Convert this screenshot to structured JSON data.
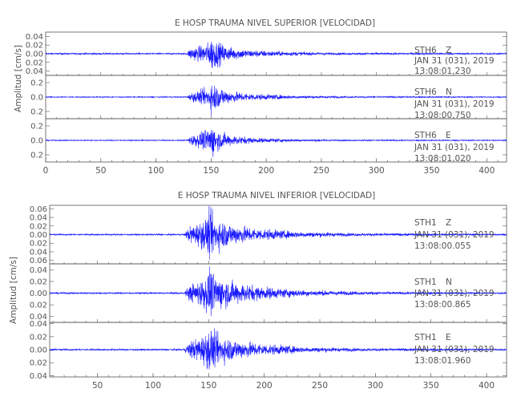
{
  "chart_data": [
    {
      "type": "line",
      "title": "E HOSP TRAUMA NIVEL SUPERIOR [VELOCIDAD]",
      "ylabel": "Amplitud [cm/s]",
      "xlabel": "",
      "xlim": [
        0,
        418
      ],
      "x_ticks": [
        0,
        50,
        100,
        150,
        200,
        250,
        300,
        350,
        400
      ],
      "x_tick_labels": [
        "0",
        "50",
        "100",
        "150",
        "200",
        "250",
        "300",
        "350",
        "400"
      ],
      "grid": false,
      "color": "#1a1aff",
      "series": [
        {
          "station": "STH6",
          "component": "Z",
          "date": "JAN 31 (031), 2019",
          "start_time": "13:08:01.230",
          "ylim": [
            -0.05,
            0.05
          ],
          "y_ticks": [
            -0.04,
            -0.02,
            0.0,
            0.02,
            0.04
          ],
          "y_tick_labels": [
            "0.04",
            "0.02",
            "0.00",
            "0.02",
            "0.04"
          ],
          "envelope": [
            [
              0,
              0.002
            ],
            [
              128,
              0.002
            ],
            [
              132,
              0.018
            ],
            [
              140,
              0.02
            ],
            [
              148,
              0.03
            ],
            [
              151,
              0.048
            ],
            [
              154,
              0.035
            ],
            [
              165,
              0.018
            ],
            [
              185,
              0.01
            ],
            [
              215,
              0.006
            ],
            [
              260,
              0.003
            ],
            [
              418,
              0.002
            ]
          ]
        },
        {
          "station": "STH6",
          "component": "N",
          "date": "JAN 31 (031), 2019",
          "start_time": "13:08:00.750",
          "ylim": [
            -0.3,
            0.3
          ],
          "y_ticks": [
            -0.2,
            0.0,
            0.2
          ],
          "y_tick_labels": [
            "0.2",
            "0.0",
            "0.2"
          ],
          "envelope": [
            [
              0,
              0.008
            ],
            [
              128,
              0.008
            ],
            [
              132,
              0.07
            ],
            [
              140,
              0.1
            ],
            [
              148,
              0.16
            ],
            [
              151,
              0.27
            ],
            [
              155,
              0.18
            ],
            [
              168,
              0.09
            ],
            [
              190,
              0.05
            ],
            [
              225,
              0.025
            ],
            [
              270,
              0.012
            ],
            [
              418,
              0.008
            ]
          ]
        },
        {
          "station": "STH6",
          "component": "E",
          "date": "JAN 31 (031), 2019",
          "start_time": "13:08:01.020",
          "ylim": [
            -0.3,
            0.3
          ],
          "y_ticks": [
            -0.2,
            0.0,
            0.2
          ],
          "y_tick_labels": [
            "0.2",
            "0.0",
            "0.2"
          ],
          "envelope": [
            [
              0,
              0.008
            ],
            [
              128,
              0.008
            ],
            [
              132,
              0.08
            ],
            [
              140,
              0.12
            ],
            [
              148,
              0.2
            ],
            [
              151,
              0.28
            ],
            [
              155,
              0.16
            ],
            [
              168,
              0.08
            ],
            [
              190,
              0.04
            ],
            [
              225,
              0.02
            ],
            [
              270,
              0.01
            ],
            [
              418,
              0.008
            ]
          ]
        }
      ]
    },
    {
      "type": "line",
      "title": "E HOSP TRAUMA NIVEL INFERIOR [VELOCIDAD]",
      "ylabel": "Amplitud [cm/s]",
      "xlabel": "",
      "xlim": [
        7,
        418
      ],
      "x_ticks": [
        50,
        100,
        150,
        200,
        250,
        300,
        350,
        400
      ],
      "x_tick_labels": [
        "50",
        "100",
        "150",
        "200",
        "250",
        "300",
        "350",
        "400"
      ],
      "grid": false,
      "color": "#1a1aff",
      "series": [
        {
          "station": "STH1",
          "component": "Z",
          "date": "JAN 31 (031), 2019",
          "start_time": "13:08:00.055",
          "ylim": [
            -0.068,
            0.068
          ],
          "y_ticks": [
            -0.06,
            -0.04,
            -0.02,
            0.0,
            0.02,
            0.04,
            0.06
          ],
          "y_tick_labels": [
            "0.06",
            "0.04",
            "0.02",
            "0.00",
            "0.02",
            "0.04",
            "0.06"
          ],
          "envelope": [
            [
              7,
              0.002
            ],
            [
              128,
              0.002
            ],
            [
              133,
              0.022
            ],
            [
              140,
              0.03
            ],
            [
              148,
              0.045
            ],
            [
              151,
              0.064
            ],
            [
              156,
              0.045
            ],
            [
              170,
              0.028
            ],
            [
              195,
              0.016
            ],
            [
              230,
              0.008
            ],
            [
              280,
              0.004
            ],
            [
              418,
              0.002
            ]
          ]
        },
        {
          "station": "STH1",
          "component": "N",
          "date": "JAN 31 (031), 2019",
          "start_time": "13:08:00.865",
          "ylim": [
            -0.05,
            0.05
          ],
          "y_ticks": [
            -0.04,
            -0.02,
            0.0,
            0.02,
            0.04
          ],
          "y_tick_labels": [
            "0.04",
            "0.02",
            "0.00",
            "0.02",
            "0.04"
          ],
          "envelope": [
            [
              7,
              0.0015
            ],
            [
              128,
              0.0015
            ],
            [
              133,
              0.016
            ],
            [
              140,
              0.022
            ],
            [
              148,
              0.035
            ],
            [
              151,
              0.048
            ],
            [
              156,
              0.034
            ],
            [
              172,
              0.022
            ],
            [
              200,
              0.012
            ],
            [
              235,
              0.006
            ],
            [
              290,
              0.003
            ],
            [
              418,
              0.0015
            ]
          ]
        },
        {
          "station": "STH1",
          "component": "E",
          "date": "JAN 31 (031), 2019",
          "start_time": "13:08:01.960",
          "ylim": [
            -0.042,
            0.042
          ],
          "y_ticks": [
            -0.04,
            -0.02,
            0.0,
            0.02,
            0.04
          ],
          "y_tick_labels": [
            "0.04",
            "0.02",
            "0.00",
            "0.02",
            "0.04"
          ],
          "envelope": [
            [
              7,
              0.0015
            ],
            [
              128,
              0.0015
            ],
            [
              133,
              0.015
            ],
            [
              140,
              0.02
            ],
            [
              148,
              0.03
            ],
            [
              151,
              0.04
            ],
            [
              156,
              0.028
            ],
            [
              172,
              0.018
            ],
            [
              200,
              0.01
            ],
            [
              235,
              0.005
            ],
            [
              290,
              0.0025
            ],
            [
              418,
              0.0015
            ]
          ]
        }
      ]
    }
  ]
}
